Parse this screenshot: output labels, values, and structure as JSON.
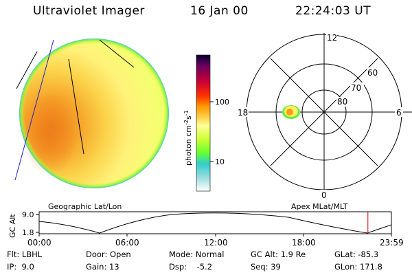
{
  "header": {
    "instrument": "Ultraviolet Imager",
    "date": "16 Jan 00",
    "time": "22:24:03 UT"
  },
  "colorbar": {
    "label": "photon cm",
    "label_sup1": "-2",
    "label_mid": "s",
    "label_sup2": "-1",
    "tick_100": "100",
    "tick_10": "10",
    "scale": "log",
    "colors": [
      "#000033",
      "#6b0060",
      "#cc0033",
      "#ff3300",
      "#ff9900",
      "#ffd24d",
      "#ffff99",
      "#ccff33",
      "#66ff33",
      "#33cccc",
      "#99dddd",
      "#ffffff"
    ]
  },
  "polar": {
    "lat_labels": [
      "80",
      "70",
      "60"
    ],
    "mlt_labels": {
      "top": "12",
      "left": "18",
      "right": "6",
      "bottom": "0"
    }
  },
  "labels": {
    "left_panel": "Geographic Lat/Lon",
    "right_panel": "Apex MLat/MLT"
  },
  "altitude_plot": {
    "ylabel": "GC Alt",
    "ytick_top": "9.0",
    "ytick_bottom": "1.8",
    "xticks": [
      "00:00",
      "06:00",
      "12:00",
      "18:00",
      "23:59"
    ],
    "marker_hour": 22.4
  },
  "info": {
    "flt": "Flt: LBHL",
    "ip": "IP:  9.0",
    "door": "Door: Open",
    "gain": "Gain: 13",
    "mode": "Mode: Normal",
    "dsp": "Dsp:    -5.2",
    "gcalt": "GC Alt: 1.9 Re",
    "seq": "Seq: 39",
    "glat": "GLat: -85.3",
    "glon": "GLon: 171.8"
  }
}
